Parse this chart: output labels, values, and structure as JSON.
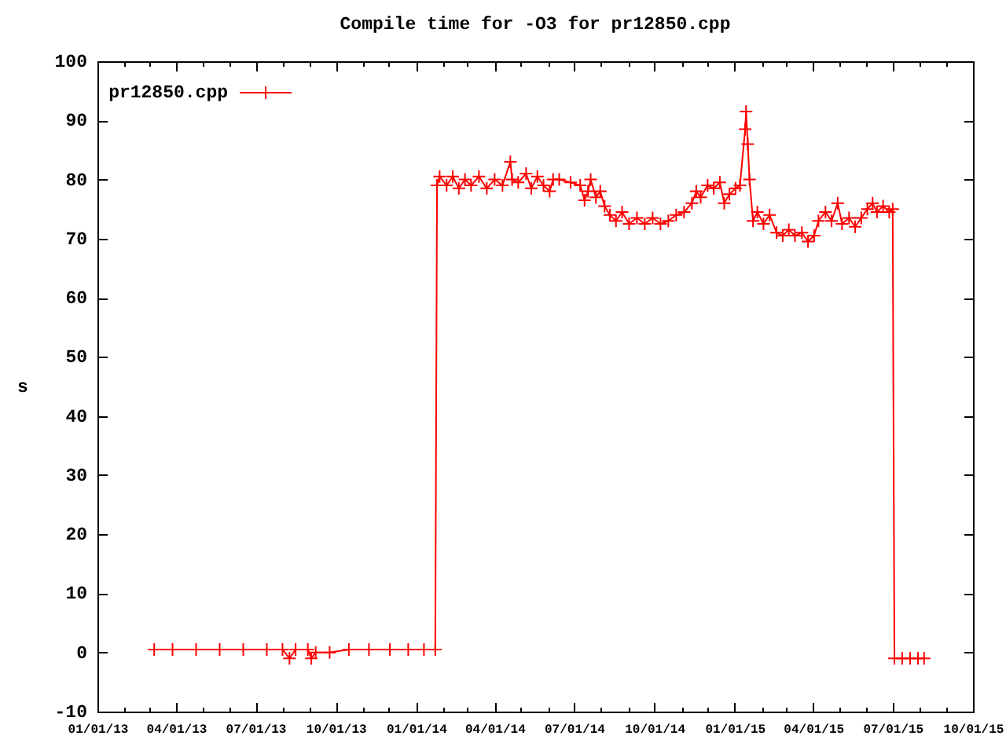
{
  "chart_data": {
    "type": "line",
    "title": "Compile time for -O3 for pr12850.cpp",
    "ylabel": "s",
    "x": [
      "2013-03-07",
      "2013-03-28",
      "2013-04-24",
      "2013-05-21",
      "2013-06-17",
      "2013-07-14",
      "2013-08-01",
      "2013-08-09",
      "2013-08-16",
      "2013-08-30",
      "2013-09-03",
      "2013-09-08",
      "2013-09-24",
      "2013-10-16",
      "2013-11-08",
      "2013-12-02",
      "2013-12-23",
      "2014-01-10",
      "2014-01-23",
      "2014-01-25",
      "2014-01-28",
      "2014-02-05",
      "2014-02-12",
      "2014-02-19",
      "2014-02-26",
      "2014-03-05",
      "2014-03-14",
      "2014-03-23",
      "2014-04-01",
      "2014-04-10",
      "2014-04-19",
      "2014-04-21",
      "2014-04-28",
      "2014-05-07",
      "2014-05-13",
      "2014-05-20",
      "2014-05-27",
      "2014-06-03",
      "2014-06-07",
      "2014-06-14",
      "2014-06-27",
      "2014-07-08",
      "2014-07-13",
      "2014-07-17",
      "2014-07-20",
      "2014-07-26",
      "2014-07-31",
      "2014-08-05",
      "2014-08-11",
      "2014-08-18",
      "2014-08-25",
      "2014-09-02",
      "2014-09-11",
      "2014-09-20",
      "2014-09-29",
      "2014-10-08",
      "2014-10-17",
      "2014-10-26",
      "2014-11-04",
      "2014-11-13",
      "2014-11-18",
      "2014-11-23",
      "2014-12-01",
      "2014-12-08",
      "2014-12-15",
      "2014-12-20",
      "2014-12-26",
      "2015-01-02",
      "2015-01-07",
      "2015-01-13",
      "2015-01-14",
      "2015-01-16",
      "2015-01-18",
      "2015-01-22",
      "2015-01-27",
      "2015-02-03",
      "2015-02-10",
      "2015-02-18",
      "2015-02-25",
      "2015-03-04",
      "2015-03-11",
      "2015-03-19",
      "2015-03-26",
      "2015-04-02",
      "2015-04-07",
      "2015-04-15",
      "2015-04-22",
      "2015-04-29",
      "2015-05-04",
      "2015-05-12",
      "2015-05-19",
      "2015-05-26",
      "2015-06-02",
      "2015-06-08",
      "2015-06-13",
      "2015-06-20",
      "2015-06-27",
      "2015-07-01",
      "2015-07-03",
      "2015-07-12",
      "2015-07-21",
      "2015-07-30",
      "2015-08-06"
    ],
    "series": [
      {
        "name": "pr12850.cpp",
        "color": "#ff0000",
        "values": [
          0.5,
          0.5,
          0.5,
          0.5,
          0.5,
          0.5,
          0.5,
          -1,
          0.5,
          0.5,
          -1,
          0,
          0,
          0.5,
          0.5,
          0.5,
          0.5,
          0.5,
          0.5,
          79,
          80.5,
          79,
          80.5,
          78.5,
          80,
          79,
          80.5,
          78.5,
          80,
          79,
          83,
          80,
          79.5,
          81,
          78.5,
          80.5,
          79,
          78,
          80,
          80,
          79.5,
          79,
          76.5,
          78,
          80,
          77,
          78,
          75.5,
          74,
          73,
          74.5,
          72.5,
          73.5,
          72.5,
          73.5,
          72.5,
          73,
          74,
          74.5,
          76,
          78,
          77,
          79,
          78.5,
          79.5,
          76,
          77.5,
          78.5,
          79,
          88.5,
          91.5,
          86,
          80,
          73,
          74.5,
          72.5,
          74,
          71,
          70.5,
          71.5,
          70.5,
          71,
          69.5,
          70.5,
          73,
          74.5,
          73,
          76,
          72.5,
          73.5,
          72,
          73.5,
          75,
          76,
          74.5,
          75.5,
          74.5,
          75,
          -1,
          -1,
          -1,
          -1,
          -1
        ]
      }
    ],
    "xlim": [
      "2013-01-01",
      "2015-10-01"
    ],
    "xticks": [
      {
        "value": "2013-01-01",
        "label": "01/01/13"
      },
      {
        "value": "2013-02-01",
        "label": null
      },
      {
        "value": "2013-03-01",
        "label": null
      },
      {
        "value": "2013-04-01",
        "label": "04/01/13"
      },
      {
        "value": "2013-05-01",
        "label": null
      },
      {
        "value": "2013-06-01",
        "label": null
      },
      {
        "value": "2013-07-01",
        "label": "07/01/13"
      },
      {
        "value": "2013-08-01",
        "label": null
      },
      {
        "value": "2013-09-01",
        "label": null
      },
      {
        "value": "2013-10-01",
        "label": "10/01/13"
      },
      {
        "value": "2013-11-01",
        "label": null
      },
      {
        "value": "2013-12-01",
        "label": null
      },
      {
        "value": "2014-01-01",
        "label": "01/01/14"
      },
      {
        "value": "2014-02-01",
        "label": null
      },
      {
        "value": "2014-03-01",
        "label": null
      },
      {
        "value": "2014-04-01",
        "label": "04/01/14"
      },
      {
        "value": "2014-05-01",
        "label": null
      },
      {
        "value": "2014-06-01",
        "label": null
      },
      {
        "value": "2014-07-01",
        "label": "07/01/14"
      },
      {
        "value": "2014-08-01",
        "label": null
      },
      {
        "value": "2014-09-01",
        "label": null
      },
      {
        "value": "2014-10-01",
        "label": "10/01/14"
      },
      {
        "value": "2014-11-01",
        "label": null
      },
      {
        "value": "2014-12-01",
        "label": null
      },
      {
        "value": "2015-01-01",
        "label": "01/01/15"
      },
      {
        "value": "2015-02-01",
        "label": null
      },
      {
        "value": "2015-03-01",
        "label": null
      },
      {
        "value": "2015-04-01",
        "label": "04/01/15"
      },
      {
        "value": "2015-05-01",
        "label": null
      },
      {
        "value": "2015-06-01",
        "label": null
      },
      {
        "value": "2015-07-01",
        "label": "07/01/15"
      },
      {
        "value": "2015-08-01",
        "label": null
      },
      {
        "value": "2015-09-01",
        "label": null
      },
      {
        "value": "2015-10-01",
        "label": "10/01/15"
      }
    ],
    "ylim": [
      -10,
      100
    ],
    "yticks": [
      -10,
      0,
      10,
      20,
      30,
      40,
      50,
      60,
      70,
      80,
      90,
      100
    ],
    "grid": false,
    "legend": "top left",
    "marker": "cross",
    "line_style": "solid"
  }
}
